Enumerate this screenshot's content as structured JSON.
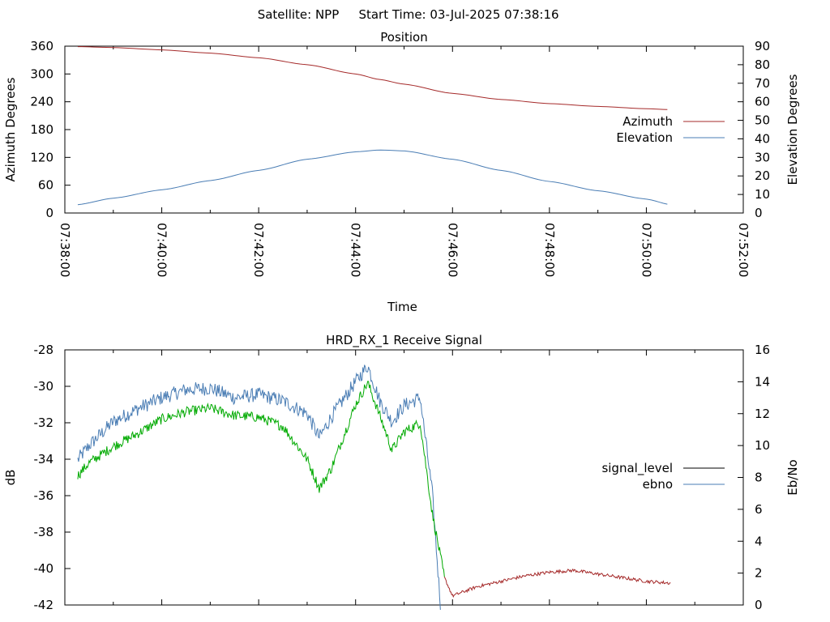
{
  "header": {
    "satellite": "Satellite: NPP",
    "start_time": "Start Time: 03-Jul-2025 07:38:16"
  },
  "chart_data": [
    {
      "type": "line",
      "title": "Position",
      "xlabel": "Time",
      "ylabel": "Azimuth Degrees",
      "y2label": "Elevation Degrees",
      "xlim": [
        "07:38:00",
        "07:52:00"
      ],
      "xticks": [
        "07:38:00",
        "07:40:00",
        "07:42:00",
        "07:44:00",
        "07:46:00",
        "07:48:00",
        "07:50:00",
        "07:52:00"
      ],
      "ylim": [
        0,
        360
      ],
      "yticks": [
        0,
        60,
        120,
        180,
        240,
        300,
        360
      ],
      "y2lim": [
        0,
        90
      ],
      "y2ticks": [
        0,
        10,
        20,
        30,
        40,
        50,
        60,
        70,
        80,
        90
      ],
      "grid": false,
      "legend_position": "right",
      "series": [
        {
          "name": "Azimuth",
          "axis": "left",
          "color": "#a52a2a",
          "x": [
            "07:38:16",
            "07:39:00",
            "07:40:00",
            "07:41:00",
            "07:42:00",
            "07:43:00",
            "07:44:00",
            "07:44:30",
            "07:45:00",
            "07:46:00",
            "07:47:00",
            "07:48:00",
            "07:49:00",
            "07:50:00",
            "07:50:30"
          ],
          "y": [
            359,
            357,
            352,
            345,
            335,
            320,
            300,
            288,
            278,
            258,
            245,
            236,
            230,
            225,
            223
          ]
        },
        {
          "name": "Elevation",
          "axis": "right",
          "color": "#4a7db4",
          "x": [
            "07:38:16",
            "07:39:00",
            "07:40:00",
            "07:41:00",
            "07:42:00",
            "07:43:00",
            "07:44:00",
            "07:44:30",
            "07:45:00",
            "07:46:00",
            "07:47:00",
            "07:48:00",
            "07:49:00",
            "07:50:00",
            "07:50:30"
          ],
          "y": [
            4.5,
            8,
            12.5,
            17.5,
            23,
            29,
            33,
            34,
            33.5,
            29,
            23,
            17,
            12,
            7.5,
            4.5
          ]
        }
      ]
    },
    {
      "type": "line",
      "title": "HRD_RX_1 Receive Signal",
      "xlabel": "",
      "ylabel": "dB",
      "y2label": "Eb/No",
      "xlim": [
        "07:38:00",
        "07:52:00"
      ],
      "ylim": [
        -42,
        -28
      ],
      "yticks": [
        -42,
        -40,
        -38,
        -36,
        -34,
        -32,
        -30,
        -28
      ],
      "y2lim": [
        0,
        16
      ],
      "y2ticks": [
        0,
        2,
        4,
        6,
        8,
        10,
        12,
        14,
        16
      ],
      "grid": false,
      "legend_position": "right",
      "series": [
        {
          "name": "signal_level",
          "axis": "left",
          "color": "#000000",
          "segment_colors": {
            "before_los": "#00aa00",
            "after_los": "#a52a2a"
          },
          "x": [
            "07:38:16",
            "07:38:30",
            "07:39:00",
            "07:39:30",
            "07:40:00",
            "07:40:30",
            "07:41:00",
            "07:41:30",
            "07:42:00",
            "07:42:30",
            "07:43:00",
            "07:43:15",
            "07:43:30",
            "07:44:00",
            "07:44:15",
            "07:44:30",
            "07:44:45",
            "07:45:00",
            "07:45:20",
            "07:45:35",
            "07:45:50",
            "07:46:00",
            "07:46:30",
            "07:47:00",
            "07:47:30",
            "07:48:00",
            "07:48:30",
            "07:49:00",
            "07:49:30",
            "07:50:00",
            "07:50:30"
          ],
          "y": [
            -34.9,
            -34.2,
            -33.3,
            -32.6,
            -31.8,
            -31.4,
            -31.2,
            -31.6,
            -31.7,
            -32.2,
            -34.0,
            -35.6,
            -34.5,
            -31.0,
            -29.8,
            -31.6,
            -33.5,
            -32.5,
            -32.0,
            -37.0,
            -40.5,
            -41.5,
            -41.0,
            -40.7,
            -40.4,
            -40.2,
            -40.1,
            -40.3,
            -40.5,
            -40.7,
            -40.8
          ]
        },
        {
          "name": "ebno",
          "axis": "right",
          "color": "#4a7db4",
          "x": [
            "07:38:16",
            "07:38:30",
            "07:39:00",
            "07:39:30",
            "07:40:00",
            "07:40:30",
            "07:41:00",
            "07:41:30",
            "07:42:00",
            "07:42:30",
            "07:43:00",
            "07:43:15",
            "07:43:30",
            "07:44:00",
            "07:44:15",
            "07:44:30",
            "07:44:45",
            "07:45:00",
            "07:45:20",
            "07:45:35",
            "07:45:45"
          ],
          "y": [
            9.1,
            10.0,
            11.5,
            12.3,
            13.0,
            13.5,
            13.6,
            13.0,
            13.2,
            12.8,
            12.0,
            10.5,
            11.8,
            14.0,
            15.0,
            12.8,
            11.5,
            12.5,
            13.0,
            7.0,
            0.0
          ]
        }
      ]
    }
  ]
}
